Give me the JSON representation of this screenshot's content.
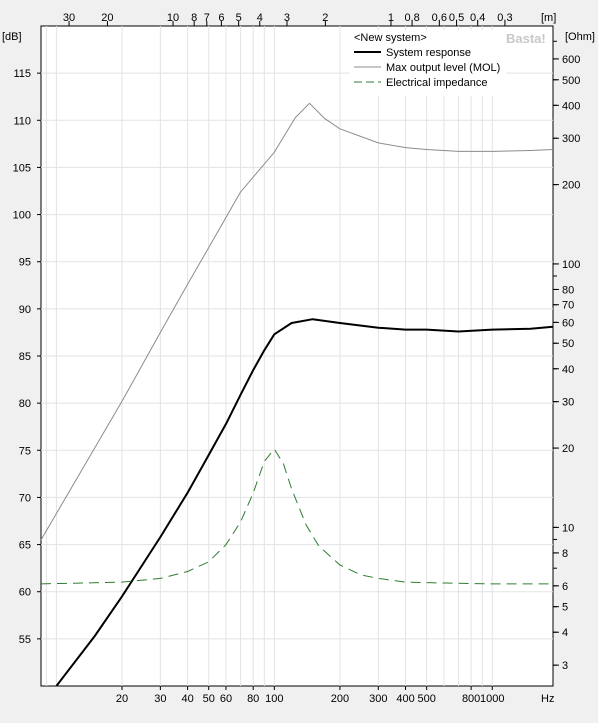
{
  "chart_data": {
    "type": "line",
    "top_axis_label": "[m]",
    "left_unit": "[dB]",
    "right_unit": "[Ohm]",
    "x_unit": "Hz",
    "watermark": "Basta!",
    "legend_title": "<New system>",
    "legend_placement": "top-right",
    "x_scale": "log",
    "xlim": [
      8.5,
      1900
    ],
    "ylim": [
      50,
      120
    ],
    "y2_scale": "log",
    "y2lim": [
      2.5,
      800
    ],
    "grid": true,
    "x_ticks": [
      {
        "v": 20,
        "t": "20"
      },
      {
        "v": 30,
        "t": "30"
      },
      {
        "v": 40,
        "t": "40"
      },
      {
        "v": 50,
        "t": "50"
      },
      {
        "v": 60,
        "t": "60"
      },
      {
        "v": 80,
        "t": "80"
      },
      {
        "v": 100,
        "t": "100"
      },
      {
        "v": 200,
        "t": "200"
      },
      {
        "v": 300,
        "t": "300"
      },
      {
        "v": 400,
        "t": "400"
      },
      {
        "v": 500,
        "t": "500"
      },
      {
        "v": 800,
        "t": "800"
      },
      {
        "v": 1000,
        "t": "1000"
      }
    ],
    "x_minor": [
      9,
      10,
      20,
      30,
      40,
      50,
      60,
      70,
      80,
      90,
      100,
      200,
      300,
      400,
      500,
      600,
      700,
      800,
      900,
      1000
    ],
    "y_ticks": [
      55,
      60,
      65,
      70,
      75,
      80,
      85,
      90,
      95,
      100,
      105,
      110,
      115
    ],
    "y2_ticks": [
      {
        "v": 3,
        "t": "3"
      },
      {
        "v": 4,
        "t": "4"
      },
      {
        "v": 5,
        "t": "5"
      },
      {
        "v": 6,
        "t": "6"
      },
      {
        "v": 8,
        "t": "8"
      },
      {
        "v": 10,
        "t": "10"
      },
      {
        "v": 20,
        "t": "20"
      },
      {
        "v": 30,
        "t": "30"
      },
      {
        "v": 40,
        "t": "40"
      },
      {
        "v": 50,
        "t": "50"
      },
      {
        "v": 60,
        "t": "60"
      },
      {
        "v": 70,
        "t": "70"
      },
      {
        "v": 80,
        "t": "80"
      },
      {
        "v": 100,
        "t": "100"
      },
      {
        "v": 200,
        "t": "200"
      },
      {
        "v": 300,
        "t": "300"
      },
      {
        "v": 400,
        "t": "400"
      },
      {
        "v": 500,
        "t": "500"
      },
      {
        "v": 600,
        "t": "600"
      }
    ],
    "y2_minor": [
      3,
      4,
      5,
      6,
      7,
      8,
      9,
      10,
      20,
      30,
      40,
      50,
      60,
      70,
      80,
      90,
      100,
      200,
      300,
      400,
      500,
      600,
      700
    ],
    "top_ticks": [
      {
        "v": 30,
        "t": "30"
      },
      {
        "v": 20,
        "t": "20"
      },
      {
        "v": 10,
        "t": "10"
      },
      {
        "v": 8,
        "t": "8"
      },
      {
        "v": 7,
        "t": "7"
      },
      {
        "v": 6,
        "t": "6"
      },
      {
        "v": 5,
        "t": "5"
      },
      {
        "v": 4,
        "t": "4"
      },
      {
        "v": 3,
        "t": "3"
      },
      {
        "v": 2,
        "t": "2"
      },
      {
        "v": 1,
        "t": "1"
      },
      {
        "v": 0.8,
        "t": "0,8"
      },
      {
        "v": 0.6,
        "t": "0,6"
      },
      {
        "v": 0.5,
        "t": "0,5"
      },
      {
        "v": 0.4,
        "t": "0,4"
      },
      {
        "v": 0.3,
        "t": "0,3"
      }
    ],
    "series": [
      {
        "name": "System response",
        "axis": "left",
        "color": "#000000",
        "style": "solid",
        "width": 2,
        "points": [
          [
            10,
            49.5
          ],
          [
            15,
            55.3
          ],
          [
            20,
            59.5
          ],
          [
            30,
            65.8
          ],
          [
            40,
            70.5
          ],
          [
            50,
            74.5
          ],
          [
            60,
            77.8
          ],
          [
            70,
            80.9
          ],
          [
            80,
            83.5
          ],
          [
            90,
            85.6
          ],
          [
            100,
            87.3
          ],
          [
            120,
            88.5
          ],
          [
            150,
            88.9
          ],
          [
            200,
            88.5
          ],
          [
            300,
            88.0
          ],
          [
            400,
            87.8
          ],
          [
            500,
            87.8
          ],
          [
            700,
            87.6
          ],
          [
            1000,
            87.8
          ],
          [
            1500,
            87.9
          ],
          [
            1900,
            88.1
          ]
        ]
      },
      {
        "name": "Max output level (MOL)",
        "axis": "left",
        "color": "#8c8c8c",
        "style": "solid",
        "width": 1,
        "points": [
          [
            8.5,
            65.5
          ],
          [
            20,
            80.2
          ],
          [
            30,
            87.5
          ],
          [
            40,
            92.6
          ],
          [
            50,
            96.5
          ],
          [
            70,
            102.4
          ],
          [
            100,
            106.6
          ],
          [
            125,
            110.3
          ],
          [
            145,
            111.8
          ],
          [
            170,
            110.2
          ],
          [
            200,
            109.1
          ],
          [
            300,
            107.6
          ],
          [
            400,
            107.1
          ],
          [
            500,
            106.9
          ],
          [
            700,
            106.7
          ],
          [
            1000,
            106.7
          ],
          [
            1500,
            106.8
          ],
          [
            1900,
            106.9
          ]
        ]
      },
      {
        "name": "Electrical impedance",
        "axis": "right",
        "color": "#2e7d32",
        "style": "dashed",
        "width": 1,
        "points": [
          [
            8.5,
            6.1
          ],
          [
            20,
            6.2
          ],
          [
            30,
            6.4
          ],
          [
            40,
            6.8
          ],
          [
            50,
            7.4
          ],
          [
            60,
            8.6
          ],
          [
            70,
            10.5
          ],
          [
            80,
            13.5
          ],
          [
            90,
            17.8
          ],
          [
            100,
            19.8
          ],
          [
            110,
            17.5
          ],
          [
            120,
            14.0
          ],
          [
            140,
            10.2
          ],
          [
            160,
            8.5
          ],
          [
            200,
            7.2
          ],
          [
            250,
            6.6
          ],
          [
            300,
            6.4
          ],
          [
            400,
            6.2
          ],
          [
            600,
            6.15
          ],
          [
            1000,
            6.1
          ],
          [
            1900,
            6.1
          ]
        ]
      }
    ]
  }
}
